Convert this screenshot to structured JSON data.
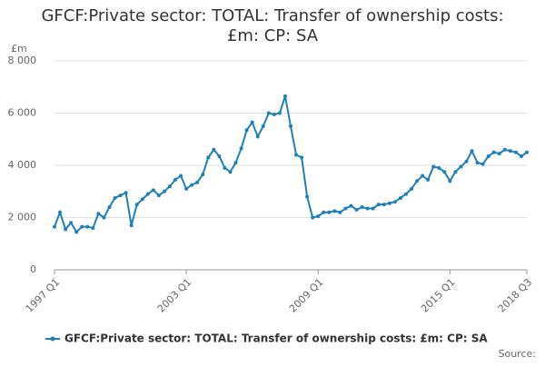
{
  "chart_data": {
    "type": "line",
    "title": [
      "GFCF:Private sector: TOTAL: Transfer of ownership costs:",
      "£m: CP: SA"
    ],
    "ylabel": "£m",
    "source": "Source:",
    "categories": [
      "1997 Q1",
      null,
      null,
      null,
      null,
      null,
      null,
      null,
      null,
      null,
      null,
      null,
      null,
      null,
      null,
      null,
      null,
      null,
      null,
      null,
      null,
      null,
      null,
      null,
      "2003 Q1",
      null,
      null,
      null,
      null,
      null,
      null,
      null,
      null,
      null,
      null,
      null,
      null,
      null,
      null,
      null,
      null,
      null,
      null,
      null,
      null,
      null,
      null,
      null,
      "2009 Q1",
      null,
      null,
      null,
      null,
      null,
      null,
      null,
      null,
      null,
      null,
      null,
      null,
      null,
      null,
      null,
      null,
      null,
      null,
      null,
      null,
      null,
      null,
      null,
      "2015 Q1",
      null,
      null,
      null,
      null,
      null,
      null,
      null,
      null,
      null,
      null,
      null,
      null,
      null,
      "2018 Q3"
    ],
    "series": [
      {
        "name": "GFCF:Private sector: TOTAL: Transfer of ownership costs: £m: CP: SA",
        "color": "#1f7fb8",
        "values": [
          1650,
          2200,
          1550,
          1800,
          1450,
          1650,
          1650,
          1600,
          2150,
          2000,
          2400,
          2750,
          2850,
          2950,
          1700,
          2500,
          2700,
          2900,
          3050,
          2850,
          3000,
          3200,
          3450,
          3600,
          3100,
          3250,
          3350,
          3650,
          4300,
          4600,
          4350,
          3900,
          3750,
          4100,
          4650,
          5350,
          5650,
          5100,
          5500,
          6000,
          5950,
          6000,
          6650,
          5500,
          4400,
          4300,
          2800,
          2000,
          2050,
          2200,
          2200,
          2250,
          2200,
          2350,
          2450,
          2300,
          2400,
          2350,
          2350,
          2500,
          2500,
          2550,
          2600,
          2750,
          2900,
          3100,
          3400,
          3600,
          3450,
          3950,
          3900,
          3750,
          3400,
          3750,
          3950,
          4150,
          4550,
          4100,
          4050,
          4350,
          4500,
          4450,
          4600,
          4550,
          4500,
          4350,
          4500
        ]
      }
    ],
    "ylim": [
      0,
      8000
    ],
    "yticks": [
      0,
      {
        "value": 2000,
        "label": "2 000"
      },
      {
        "value": 4000,
        "label": "4 000"
      },
      {
        "value": 6000,
        "label": "6 000"
      },
      {
        "value": 8000,
        "label": "8 000"
      }
    ],
    "grid": true
  }
}
